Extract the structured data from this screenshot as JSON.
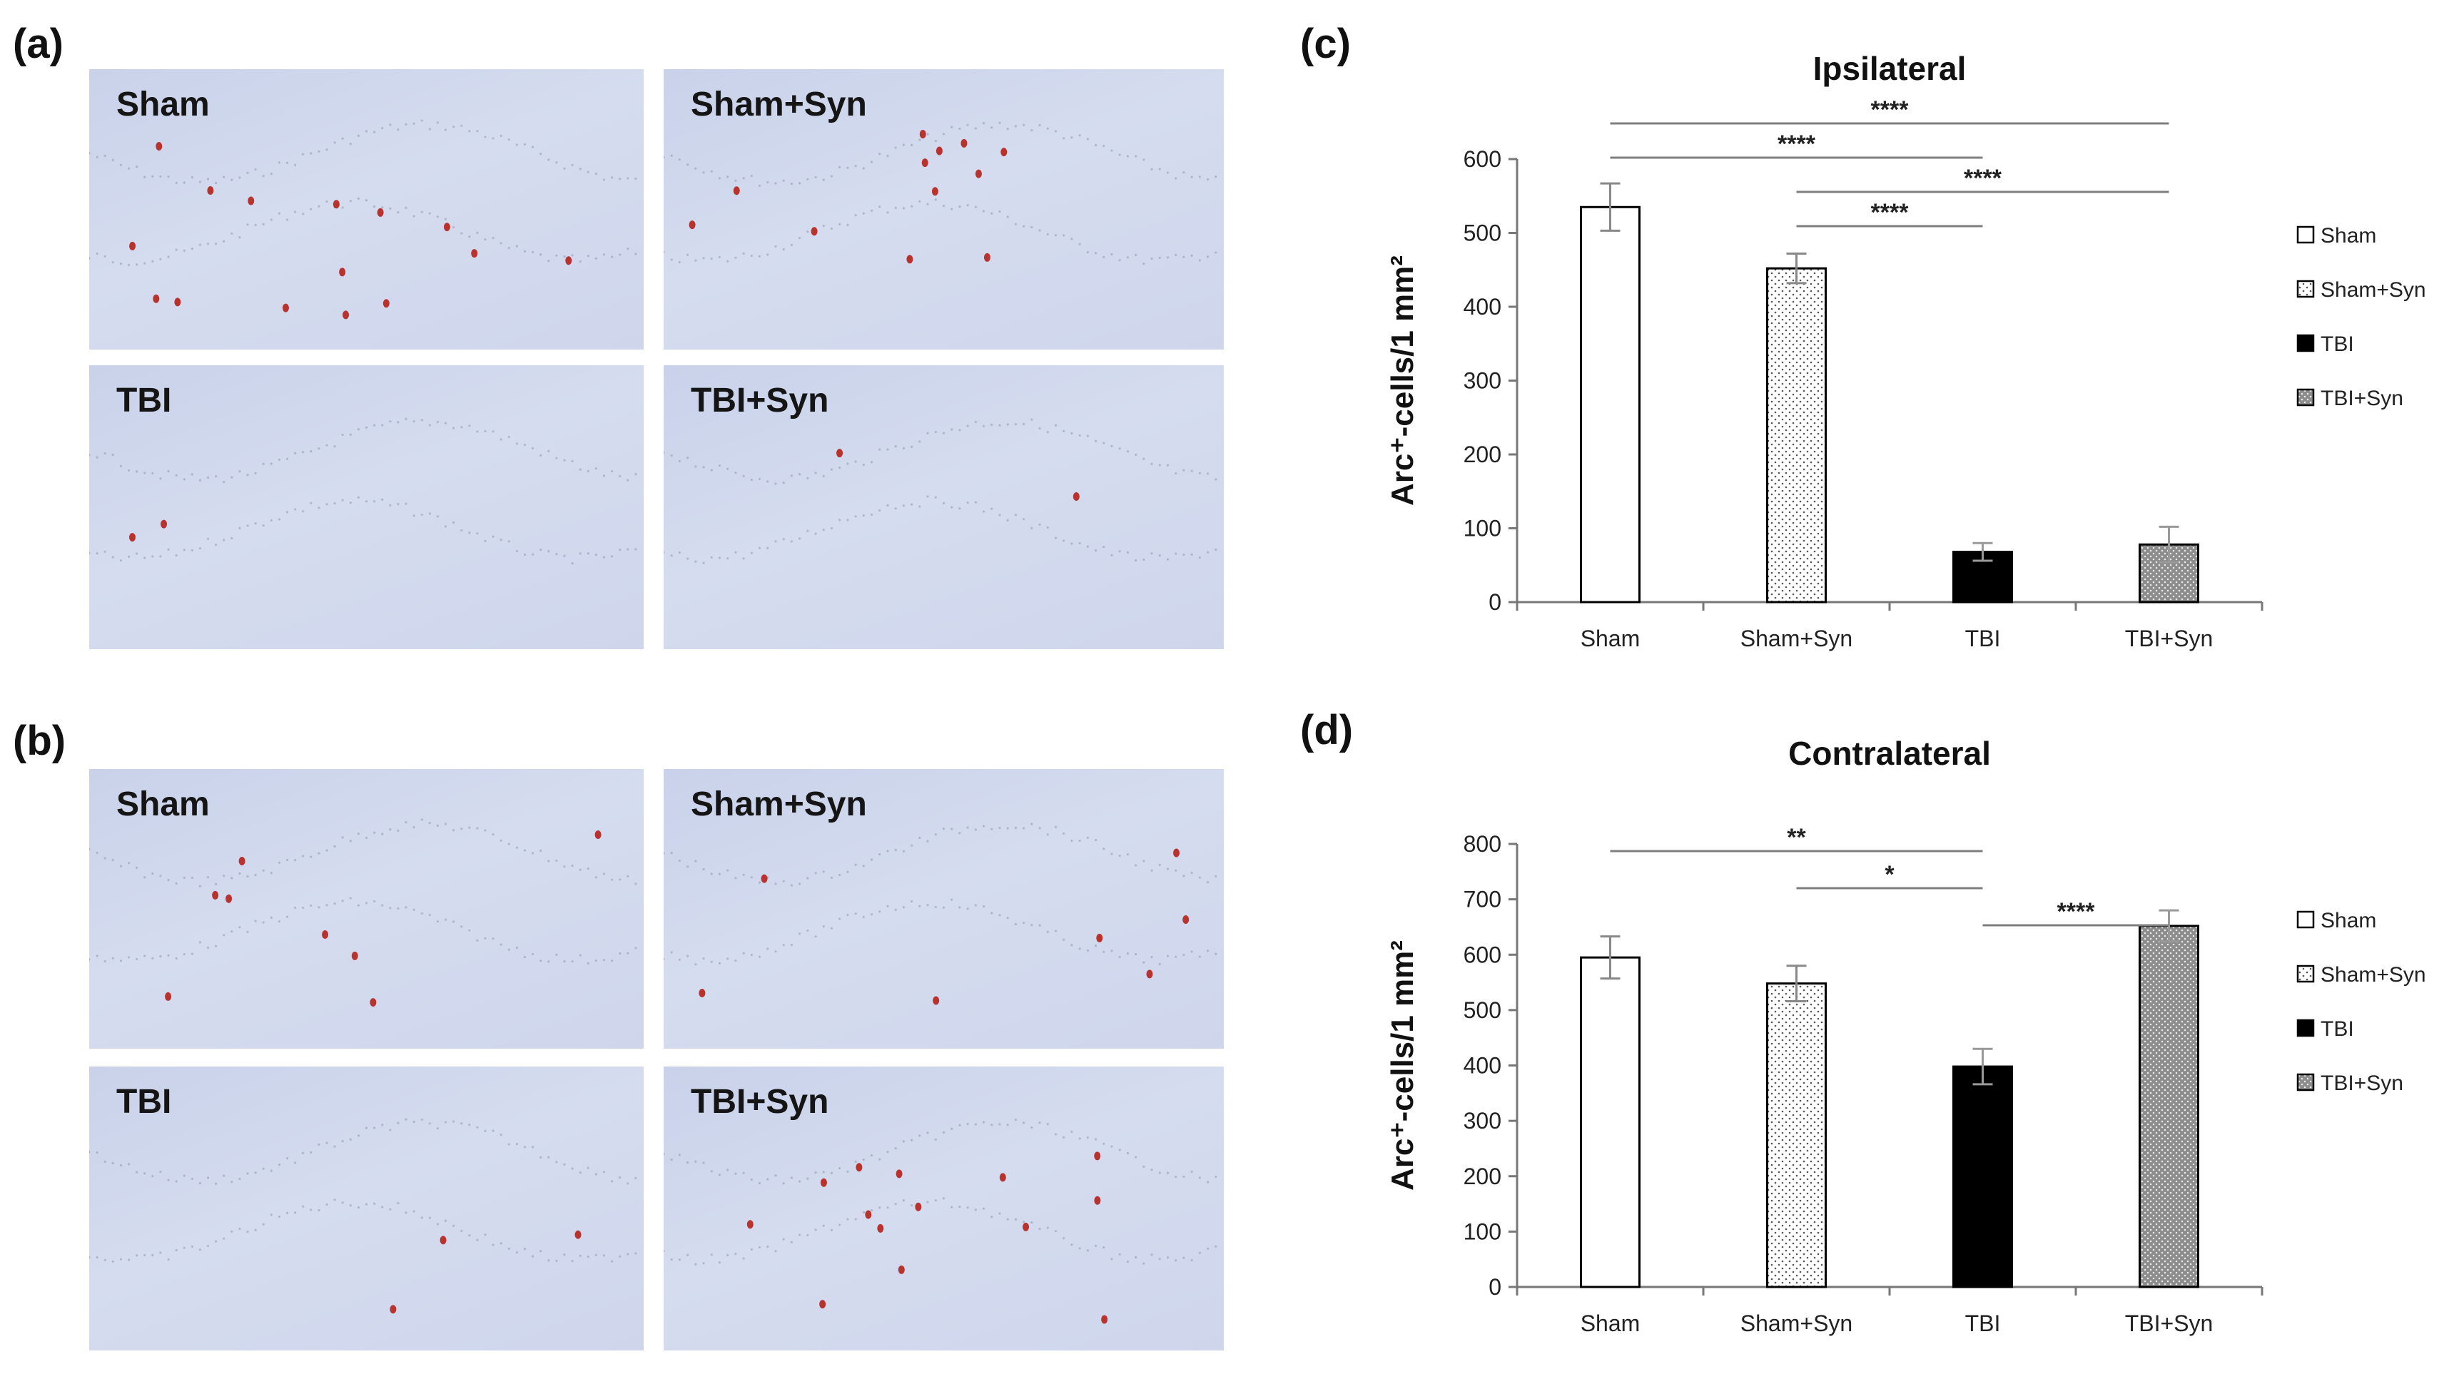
{
  "panels": {
    "a": {
      "label": "(a)",
      "images": [
        {
          "label": "Sham",
          "red_cells": 15
        },
        {
          "label": "Sham+Syn",
          "red_cells": 12
        },
        {
          "label": "TBI",
          "red_cells": 2
        },
        {
          "label": "TBI+Syn",
          "red_cells": 2
        }
      ]
    },
    "b": {
      "label": "(b)",
      "images": [
        {
          "label": "Sham",
          "red_cells": 8
        },
        {
          "label": "Sham+Syn",
          "red_cells": 7
        },
        {
          "label": "TBI",
          "red_cells": 3
        },
        {
          "label": "TBI+Syn",
          "red_cells": 14
        }
      ]
    },
    "c": {
      "label": "(c)"
    },
    "d": {
      "label": "(d)"
    }
  },
  "colors": {
    "micro_bg": "#cfd6ec",
    "red_cell": "#b8322e",
    "bar_black": "#000000",
    "bar_grey": "#8c8c8c",
    "sig_line": "#7f7f7f"
  },
  "chart_data": [
    {
      "type": "bar",
      "title": "Ipsilateral",
      "ylabel": "Arc⁺-cells/1 mm²",
      "ylim": [
        0,
        600
      ],
      "yticks": [
        "0",
        "100",
        "200",
        "300",
        "400",
        "500",
        "600"
      ],
      "categories": [
        "Sham",
        "Sham+Syn",
        "TBI",
        "TBI+Syn"
      ],
      "values": [
        535,
        452,
        68,
        78
      ],
      "errors": [
        32,
        20,
        12,
        24
      ],
      "fills": [
        "white",
        "dots",
        "black",
        "grey-dots"
      ],
      "legend": {
        "position": "right",
        "entries": [
          "Sham",
          "Sham+Syn",
          "TBI",
          "TBI+Syn"
        ]
      },
      "significance": [
        {
          "from": 0,
          "to": 3,
          "label": "****"
        },
        {
          "from": 0,
          "to": 2,
          "label": "****"
        },
        {
          "from": 1,
          "to": 3,
          "label": "****"
        },
        {
          "from": 1,
          "to": 2,
          "label": "****"
        }
      ]
    },
    {
      "type": "bar",
      "title": "Contralateral",
      "ylabel": "Arc⁺-cells/1 mm²",
      "ylim": [
        0,
        800
      ],
      "yticks": [
        "0",
        "100",
        "200",
        "300",
        "400",
        "500",
        "600",
        "700",
        "800"
      ],
      "categories": [
        "Sham",
        "Sham+Syn",
        "TBI",
        "TBI+Syn"
      ],
      "values": [
        595,
        548,
        398,
        652
      ],
      "errors": [
        38,
        32,
        32,
        28
      ],
      "fills": [
        "white",
        "dots",
        "black",
        "grey-dots"
      ],
      "legend": {
        "position": "right",
        "entries": [
          "Sham",
          "Sham+Syn",
          "TBI",
          "TBI+Syn"
        ]
      },
      "significance": [
        {
          "from": 0,
          "to": 2,
          "label": "**"
        },
        {
          "from": 1,
          "to": 2,
          "label": "*"
        },
        {
          "from": 2,
          "to": 3,
          "label": "****"
        }
      ]
    }
  ]
}
